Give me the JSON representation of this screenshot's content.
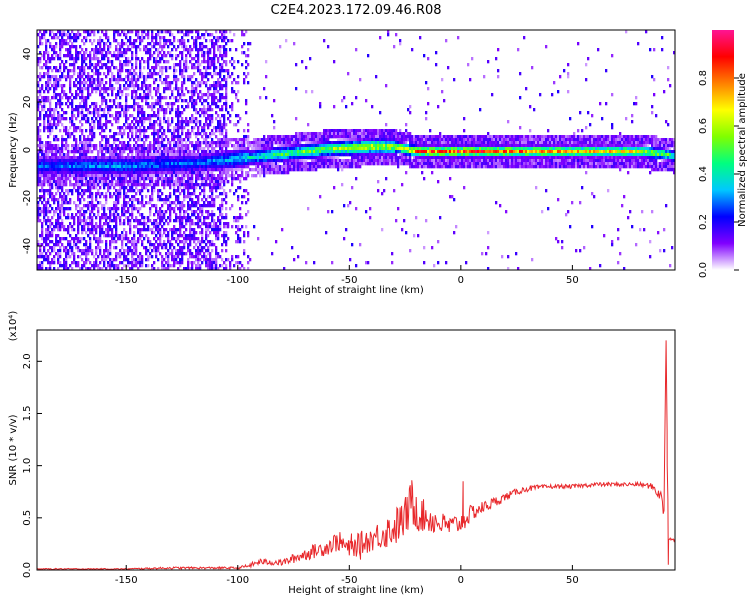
{
  "title": "C2E4.2023.172.09.46.R08",
  "chart_data": [
    {
      "type": "heatmap",
      "xlabel": "Height of straight line (km)",
      "ylabel": "Frequency (Hz)",
      "xlim": [
        -190,
        96
      ],
      "ylim": [
        -50,
        50
      ],
      "x_ticks": [
        "-150",
        "-100",
        "-50",
        "0",
        "50"
      ],
      "x_tick_values": [
        -150,
        -100,
        -50,
        0,
        50
      ],
      "y_ticks": [
        "-40",
        "-20",
        "0",
        "20",
        "40"
      ],
      "y_tick_values": [
        -40,
        -20,
        0,
        20,
        40
      ],
      "grid": false,
      "colorbar": {
        "label": "Normalized spectral amplitude",
        "range": [
          0,
          1
        ],
        "ticks": [
          "0.0",
          "0.2",
          "0.4",
          "0.6",
          "0.8"
        ],
        "tick_values": [
          0,
          0.2,
          0.4,
          0.6,
          0.8
        ],
        "colormap": "rainbow",
        "colors": [
          "#ffffff",
          "#8000ff",
          "#0000ff",
          "#00c8ff",
          "#00ff80",
          "#80ff00",
          "#ffff00",
          "#ff8000",
          "#ff0000",
          "#ff1493"
        ]
      },
      "ridge": {
        "description_values_x": [
          -190,
          -150,
          -120,
          -100,
          -80,
          -60,
          -40,
          -30,
          -20,
          -10,
          0,
          20,
          50,
          80,
          90,
          96
        ],
        "frequency": [
          -6,
          -6,
          -5,
          -3,
          -1,
          1,
          2,
          2,
          0,
          0,
          0,
          0,
          0,
          0,
          -1,
          -2
        ],
        "amplitude": [
          0.3,
          0.35,
          0.3,
          0.4,
          0.55,
          0.6,
          0.7,
          0.7,
          0.85,
          0.85,
          0.9,
          0.85,
          0.75,
          0.7,
          0.6,
          0.5
        ]
      }
    },
    {
      "type": "line",
      "xlabel": "Height of straight line (km)",
      "ylabel": "SNR (10 * v/v)",
      "multiplier": "(x10⁴)",
      "xlim": [
        -190,
        96
      ],
      "ylim": [
        0,
        2.3
      ],
      "x_ticks": [
        "-150",
        "-100",
        "-50",
        "0",
        "50"
      ],
      "x_tick_values": [
        -150,
        -100,
        -50,
        0,
        50
      ],
      "y_ticks": [
        "0.0",
        "0.5",
        "1.0",
        "1.5",
        "2.0"
      ],
      "y_tick_values": [
        0,
        0.5,
        1.0,
        1.5,
        2.0
      ],
      "grid": false,
      "series": [
        {
          "color": "#e8282b",
          "x": [
            -190,
            -170,
            -150,
            -130,
            -110,
            -100,
            -95,
            -90,
            -80,
            -70,
            -60,
            -55,
            -50,
            -45,
            -40,
            -35,
            -30,
            -25,
            -22,
            -20,
            -15,
            -10,
            -5,
            0,
            5,
            10,
            15,
            20,
            25,
            30,
            40,
            50,
            60,
            70,
            80,
            86,
            88,
            90,
            91,
            92,
            93,
            94,
            96
          ],
          "y": [
            0.01,
            0.01,
            0.01,
            0.02,
            0.02,
            0.02,
            0.04,
            0.08,
            0.07,
            0.15,
            0.22,
            0.28,
            0.2,
            0.25,
            0.3,
            0.35,
            0.4,
            0.5,
            0.65,
            0.55,
            0.5,
            0.45,
            0.42,
            0.45,
            0.55,
            0.6,
            0.65,
            0.7,
            0.75,
            0.78,
            0.8,
            0.8,
            0.82,
            0.82,
            0.82,
            0.8,
            0.75,
            0.7,
            0.5,
            2.2,
            0.3,
            0.3,
            0.28
          ],
          "noise": [
            0.005,
            0.005,
            0.005,
            0.01,
            0.01,
            0.01,
            0.02,
            0.03,
            0.03,
            0.06,
            0.08,
            0.1,
            0.08,
            0.12,
            0.12,
            0.15,
            0.18,
            0.2,
            0.22,
            0.18,
            0.15,
            0.12,
            0.1,
            0.1,
            0.08,
            0.06,
            0.05,
            0.04,
            0.03,
            0.03,
            0.02,
            0.02,
            0.02,
            0.02,
            0.02,
            0.03,
            0.05,
            0.05,
            0.05,
            0,
            0.02,
            0.02,
            0.02
          ],
          "spikes": [
            [
              -49,
              0.35
            ],
            [
              -45,
              0.1
            ],
            [
              -22,
              0.86
            ],
            [
              -20,
              0.7
            ],
            [
              1,
              0.85
            ],
            [
              92,
              2.2
            ],
            [
              92.5,
              1.0
            ],
            [
              93,
              0.05
            ]
          ]
        }
      ]
    }
  ]
}
